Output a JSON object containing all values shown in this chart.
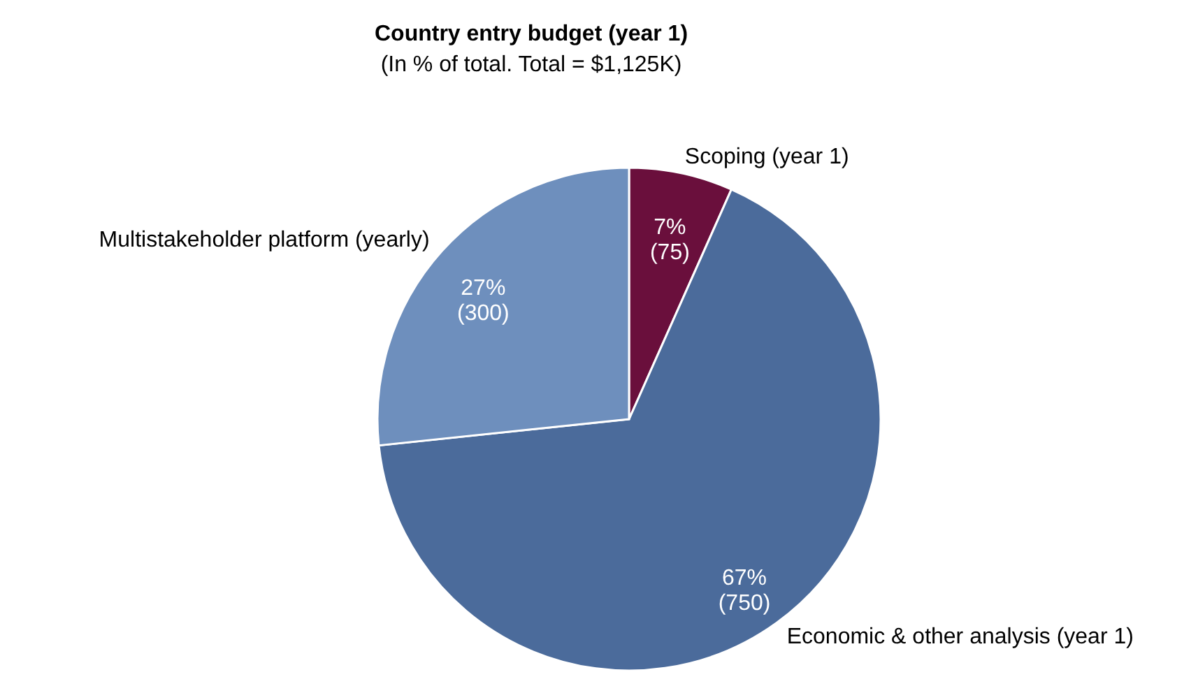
{
  "chart_data": {
    "type": "pie",
    "title": "Country entry budget (year 1)",
    "subtitle": "(In % of total. Total = $1,125K)",
    "categories": [
      "Scoping (year 1)",
      "Economic & other analysis (year 1)",
      "Multistakeholder platform (yearly)"
    ],
    "values": [
      75,
      750,
      300
    ],
    "colors": [
      "#6a0f3c",
      "#4b6b9b",
      "#6e8fbd"
    ],
    "value_labels": [
      "7%\n(75)",
      "67%\n(750)",
      "27%\n(300)"
    ]
  }
}
